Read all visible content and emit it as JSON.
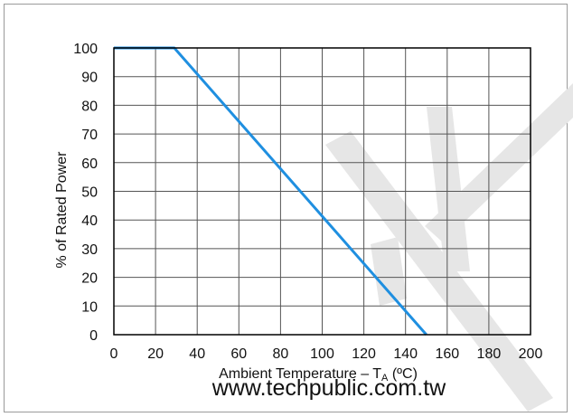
{
  "chart_data": {
    "type": "line",
    "title": "",
    "xlabel_main": "Ambient Temperature – T",
    "xlabel_sub": "A",
    "xlabel_unit": " (ºC)",
    "ylabel": "% of Rated Power",
    "xlim": [
      0,
      200
    ],
    "ylim": [
      0,
      100
    ],
    "xticks": [
      0,
      20,
      40,
      60,
      80,
      100,
      120,
      140,
      160,
      180,
      200
    ],
    "yticks": [
      0,
      10,
      20,
      30,
      40,
      50,
      60,
      70,
      80,
      90,
      100
    ],
    "grid": true,
    "series": [
      {
        "x": [
          0,
          29,
          150
        ],
        "y": [
          100,
          100,
          0
        ],
        "color": "#1f8fe0"
      }
    ]
  },
  "watermark": {
    "text": "www.techpublic.com.tw",
    "color": "#e6e6e6"
  },
  "colors": {
    "grid": "#555555",
    "axis": "#000000",
    "frame": "#9a9a9a"
  }
}
